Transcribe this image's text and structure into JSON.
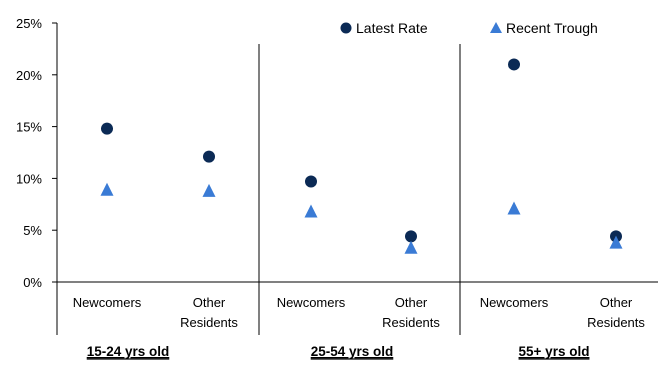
{
  "chart_data": {
    "type": "scatter",
    "title": "",
    "ylabel": "",
    "ylim": [
      0,
      25
    ],
    "yticks": [
      0,
      5,
      10,
      15,
      20,
      25
    ],
    "ytick_labels": [
      "0%",
      "5%",
      "10%",
      "15%",
      "20%",
      "25%"
    ],
    "groups": [
      "15-24 yrs old",
      "25-54 yrs old",
      "55+ yrs old"
    ],
    "categories": [
      [
        "Newcomers"
      ],
      [
        "Other",
        "Residents"
      ],
      [
        "Newcomers"
      ],
      [
        "Other",
        "Residents"
      ],
      [
        "Newcomers"
      ],
      [
        "Other",
        "Residents"
      ]
    ],
    "series": [
      {
        "name": "Latest Rate",
        "marker": "circle",
        "color": "#0b2a55",
        "values": [
          14.8,
          12.1,
          9.7,
          4.4,
          21.0,
          4.4
        ]
      },
      {
        "name": "Recent Trough",
        "marker": "triangle",
        "color": "#3a7bd5",
        "values": [
          8.9,
          8.8,
          6.8,
          3.3,
          7.1,
          3.8
        ]
      }
    ],
    "grid": false,
    "legend_position": "top-right"
  }
}
